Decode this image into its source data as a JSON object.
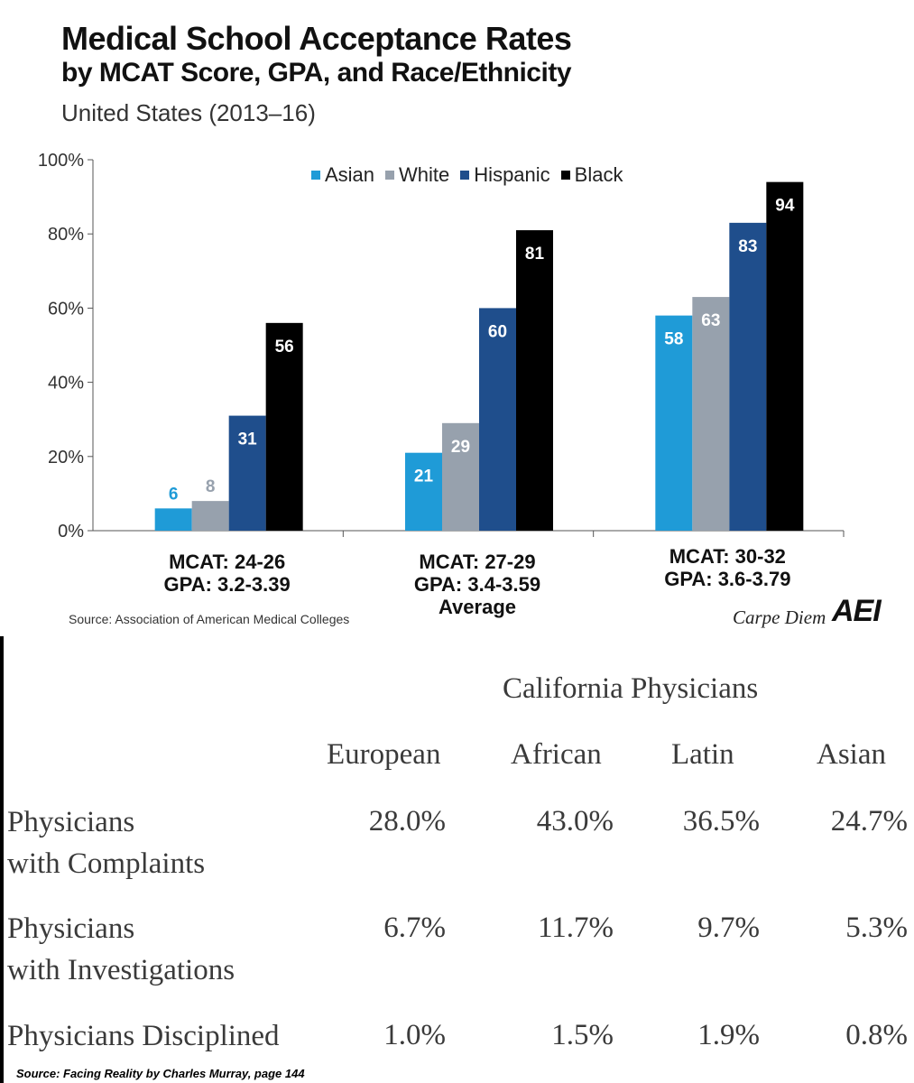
{
  "chart_data": {
    "type": "bar",
    "title": "Medical School Acceptance Rates",
    "subtitle": "by MCAT Score, GPA, and Race/Ethnicity",
    "region": "United States (2013–16)",
    "categories": [
      [
        "MCAT: 24-26",
        "GPA: 3.2-3.39"
      ],
      [
        "MCAT: 27-29",
        "GPA: 3.4-3.59",
        "Average"
      ],
      [
        "MCAT: 30-32",
        "GPA: 3.6-3.79"
      ]
    ],
    "series": [
      {
        "name": "Asian",
        "values": [
          6,
          21,
          58
        ],
        "color": "#1f9bd7"
      },
      {
        "name": "White",
        "values": [
          8,
          29,
          63
        ],
        "color": "#97a1ad"
      },
      {
        "name": "Hispanic",
        "values": [
          31,
          60,
          83
        ],
        "color": "#1f4e8c"
      },
      {
        "name": "Black",
        "values": [
          56,
          81,
          94
        ],
        "color": "#000000"
      }
    ],
    "ylim": [
      0,
      100
    ],
    "yticks": [
      "0%",
      "20%",
      "40%",
      "60%",
      "80%",
      "100%"
    ],
    "legend": "top-center",
    "source": "Source: Association of American Medical Colleges",
    "branding": {
      "carpe": "Carpe Diem",
      "logo": "AEI"
    }
  },
  "table": {
    "title": "California Physicians",
    "columns": [
      "European",
      "African",
      "Latin",
      "Asian"
    ],
    "rows": [
      {
        "label": [
          "Physicians",
          "with Complaints"
        ],
        "values": [
          "28.0%",
          "43.0%",
          "36.5%",
          "24.7%"
        ]
      },
      {
        "label": [
          "Physicians",
          "with Investigations"
        ],
        "values": [
          "6.7%",
          "11.7%",
          "9.7%",
          "5.3%"
        ]
      },
      {
        "label": [
          "Physicians Disciplined"
        ],
        "values": [
          "1.0%",
          "1.5%",
          "1.9%",
          "0.8%"
        ]
      }
    ],
    "source": "Source: Facing Reality by Charles Murray, page 144"
  }
}
